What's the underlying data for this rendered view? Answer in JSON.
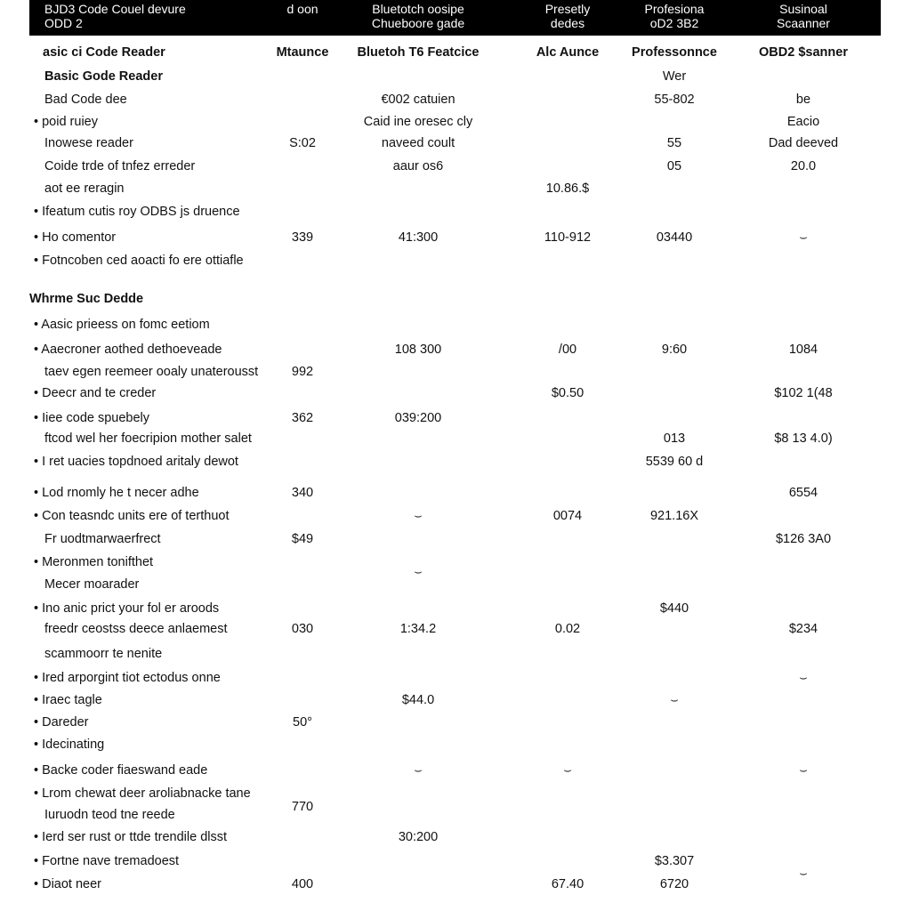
{
  "header": {
    "columns": [
      [
        "BJD3 Code Couel devure",
        "ODD 2"
      ],
      [
        "d oon"
      ],
      [
        "Bluetotch oosipe",
        "Chueboore gade"
      ],
      [
        "Presetly",
        "dedes"
      ],
      [
        "Profesiona",
        "oD2 3B2"
      ],
      [
        "Susinoal",
        "Scaanner"
      ]
    ]
  },
  "rows": [
    [
      "asic ci Code Reader",
      "Mtaunce",
      "Bluetoh T6 Featcice",
      "Alc Aunce",
      "Professonnce",
      "OBD2 $sanner"
    ],
    [
      "Basic Gode Reader",
      null,
      null,
      null,
      "Wer",
      null
    ],
    [
      "Bad Code dee",
      null,
      "€002 catuien",
      null,
      "55-802",
      "be"
    ],
    [
      "• poid ruiey",
      null,
      "Caid ine oresec cly",
      null,
      null,
      "Eacio"
    ],
    [
      "Inowese reader",
      "S:02",
      "naveed coult",
      null,
      "55",
      "Dad deeved"
    ],
    [
      "Coide trde of tnfez erreder",
      null,
      "aaur os6",
      null,
      "05",
      "20.0"
    ],
    [
      "aot ee reragin",
      null,
      null,
      "10.86.$",
      null,
      null
    ],
    [
      "• Ifeatum cutis roy ODBS js druence",
      null,
      null,
      null,
      null,
      null
    ],
    [
      "• Ho comentor",
      "339",
      "41:300",
      "110-912",
      "03440",
      "⌣"
    ],
    [
      "• Fotncoben ced aoacti fo ere ottiafle",
      null,
      null,
      null,
      null,
      null
    ],
    [
      "Whrme Suc Dedde",
      null,
      null,
      null,
      null,
      null
    ],
    [
      "• Aasic prieess on fomc eetiom",
      null,
      null,
      null,
      null,
      null
    ],
    [
      "• Aaecroner aothed dethoeveade",
      null,
      "108 300",
      "/00",
      "9:60",
      "1084"
    ],
    [
      "taev egen reemeer ooaly unaterousst",
      "992",
      null,
      null,
      null,
      null
    ],
    [
      "• Deecr and te creder",
      null,
      null,
      "$0.50",
      null,
      "$102 1(48"
    ],
    [
      "• Iiee code spuebely",
      "362",
      "039:200",
      null,
      null,
      null
    ],
    [
      "ftcod wel her foecripion mother salet",
      null,
      null,
      null,
      "013",
      "$8 13 4.0)"
    ],
    [
      "• I ret uacies topdnoed aritaly dewot",
      null,
      null,
      null,
      "5539 60 d",
      null
    ],
    [
      "• Lod rnomly he t necer adhe",
      "340",
      null,
      null,
      null,
      "6554"
    ],
    [
      "• Con teasndc units ere of terthuot",
      null,
      "⌣",
      "0074",
      "921.16X",
      null
    ],
    [
      "Fr uodtmarwaerfrect",
      "$49",
      null,
      null,
      null,
      "$126 3A0"
    ],
    [
      "• Meronmen tonifthet",
      null,
      null,
      null,
      null,
      null
    ],
    [
      null,
      null,
      "⌣",
      null,
      null,
      null
    ],
    [
      "Mecer moarader",
      null,
      null,
      null,
      null,
      null
    ],
    [
      "• Ino anic prict your fol er aroods",
      null,
      null,
      null,
      "$440",
      null
    ],
    [
      "freedr ceostss deece anlaemest",
      "030",
      "1:34.2",
      "0.02",
      null,
      "$234"
    ],
    [
      "scammoorr te nenite",
      null,
      null,
      null,
      null,
      null
    ],
    [
      "• Ired arporgint tiot ectodus onne",
      null,
      null,
      null,
      null,
      "⌣"
    ],
    [
      "• Iraec tagle",
      null,
      "$44.0",
      null,
      "⌣",
      null
    ],
    [
      "• Dareder",
      "50°",
      null,
      null,
      null,
      null
    ],
    [
      "• Idecinating",
      null,
      null,
      null,
      null,
      null
    ],
    [
      "• Backe coder fiaeswand eade",
      null,
      "⌣",
      "⌣",
      null,
      "⌣"
    ],
    [
      "• Lrom chewat deer aroliabnacke tane",
      null,
      null,
      null,
      null,
      null
    ],
    [
      null,
      "770",
      null,
      null,
      null,
      null
    ],
    [
      "Iuruodn teod tne reede",
      null,
      null,
      null,
      null,
      null
    ],
    [
      "• Ierd ser rust or ttde trendile dlsst",
      null,
      "30:200",
      null,
      null,
      null
    ],
    [
      "• Fortne nave tremadoest",
      null,
      null,
      null,
      "$3.307",
      null
    ],
    [
      null,
      null,
      null,
      null,
      null,
      "⌣"
    ],
    [
      "• Diaot neer",
      "400",
      null,
      "67.40",
      "6720",
      null
    ]
  ]
}
